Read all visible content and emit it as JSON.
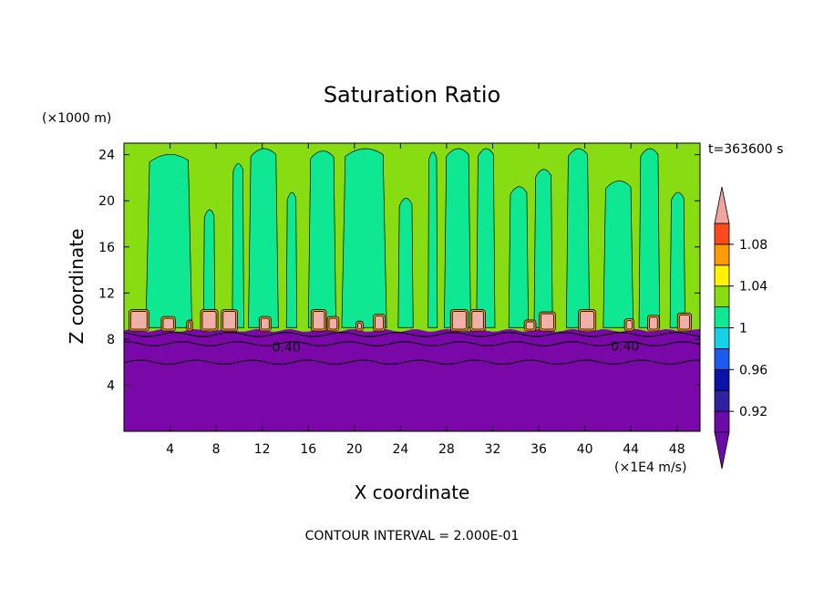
{
  "chart_data": {
    "type": "heatmap",
    "title": "Saturation Ratio",
    "xlabel": "X coordinate",
    "ylabel": "Z coordinate",
    "x_unit": "(×1E4 m/s)",
    "y_unit": "(×1000 m)",
    "time_label": "t=363600 s",
    "footer": "CONTOUR INTERVAL = 2.000E-01",
    "xlim": [
      0,
      50
    ],
    "ylim": [
      0,
      25
    ],
    "x_ticks": [
      "4",
      "8",
      "12",
      "16",
      "20",
      "24",
      "28",
      "32",
      "36",
      "40",
      "44",
      "48"
    ],
    "y_ticks": [
      "4",
      "8",
      "12",
      "16",
      "20",
      "24"
    ],
    "contour_labels": [
      "0.40",
      "0.40"
    ],
    "colorbar": {
      "labels": [
        "0.92",
        "0.96",
        "1",
        "1.04",
        "1.08"
      ],
      "levels": [
        0.9,
        0.92,
        0.94,
        0.96,
        0.98,
        1.0,
        1.02,
        1.04,
        1.06,
        1.08,
        1.1
      ],
      "colors": [
        "#6a0aa8",
        "#3020a0",
        "#0a12a8",
        "#1a5cf0",
        "#15d2e8",
        "#0fe892",
        "#88dd12",
        "#fff300",
        "#ff9b00",
        "#ff4a1e",
        "#f0a6a0"
      ]
    },
    "regions": [
      {
        "name": "background",
        "color": "#88dd12"
      },
      {
        "name": "upper plumes",
        "color": "#0fe892"
      },
      {
        "name": "lower layer",
        "color": "#7a08a8"
      },
      {
        "name": "cloud tops",
        "color": "#f0b0aa"
      },
      {
        "name": "cloud edges",
        "color": "#ff9b00"
      }
    ],
    "grid": false,
    "legend": "right"
  }
}
